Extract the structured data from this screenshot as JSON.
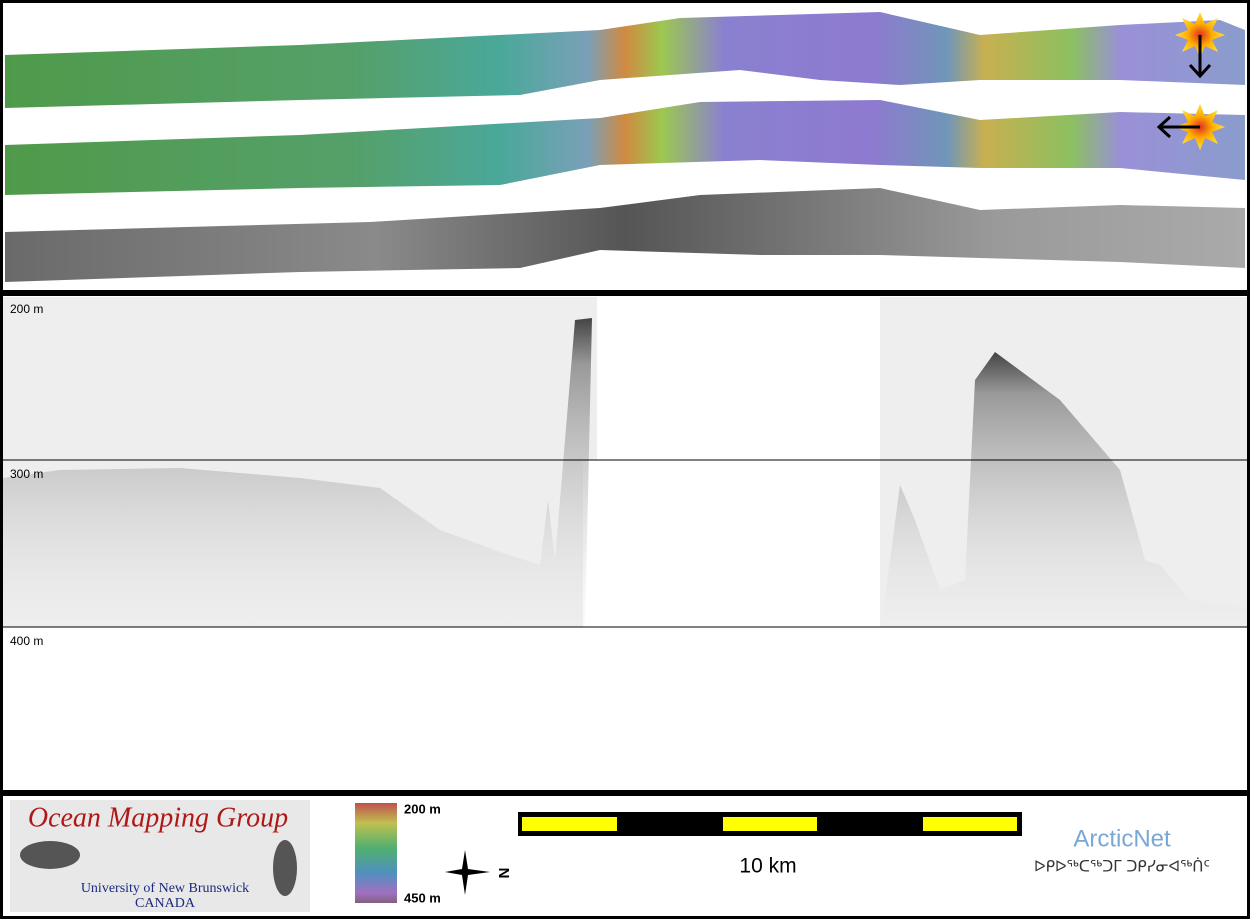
{
  "profile": {
    "depth_labels": [
      "200 m",
      "300 m",
      "400 m"
    ]
  },
  "logo": {
    "title": "Ocean Mapping Group",
    "university": "University of New Brunswick",
    "country": "CANADA"
  },
  "colorbar": {
    "top_label": "200 m",
    "bottom_label": "450 m"
  },
  "compass": {
    "label": "N"
  },
  "scale_bar": {
    "label": "10 km"
  },
  "partner": {
    "name": "ArcticNet",
    "syllabics": "ᐅᑭᐅᖅᑕᖅᑐᒥ ᑐᑭᓯᓂᐊᖅᑏᑦ"
  }
}
